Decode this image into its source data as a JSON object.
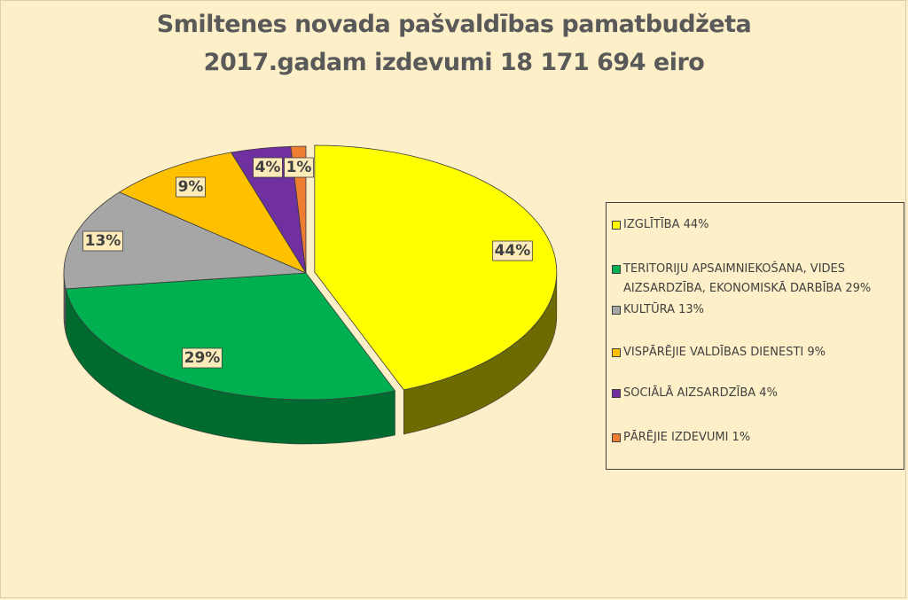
{
  "title": {
    "line1": "Smiltenes novada pašvaldības pamatbudžeta",
    "line2": "2017.gadam izdevumi  18 171 694 eiro"
  },
  "chart_data": {
    "type": "pie",
    "title": "Smiltenes novada pašvaldības pamatbudžeta 2017.gadam izdevumi  18 171 694 eiro",
    "series": [
      {
        "name": "IZGLĪTĪBA 44%",
        "value": 44,
        "label": "44%",
        "color": "#ffff00",
        "side": "#6b6b00"
      },
      {
        "name": "TERITORIJU APSAIMNIEKOŠANA, VIDES AIZSARDZĪBA, EKONOMISKĀ DARBĪBA 29%",
        "value": 29,
        "label": "29%",
        "color": "#00b050",
        "side": "#006b2e"
      },
      {
        "name": "KULTŪRA 13%",
        "value": 13,
        "label": "13%",
        "color": "#a6a6a6",
        "side": "#606060"
      },
      {
        "name": "VISPĀRĒJIE VALDĪBAS DIENESTI 9%",
        "value": 9,
        "label": "9%",
        "color": "#ffc000",
        "side": "#9a7400"
      },
      {
        "name": "SOCIĀLĀ AIZSARDZĪBA 4%",
        "value": 4,
        "label": "4%",
        "color": "#7030a0",
        "side": "#3f1b5a"
      },
      {
        "name": "PĀRĒJIE IZDEVUMI 1%",
        "value": 1,
        "label": "1%",
        "color": "#ed7d31",
        "side": "#8f4a1c"
      }
    ],
    "legend_position": "right",
    "three_d": true,
    "exploded": true
  }
}
